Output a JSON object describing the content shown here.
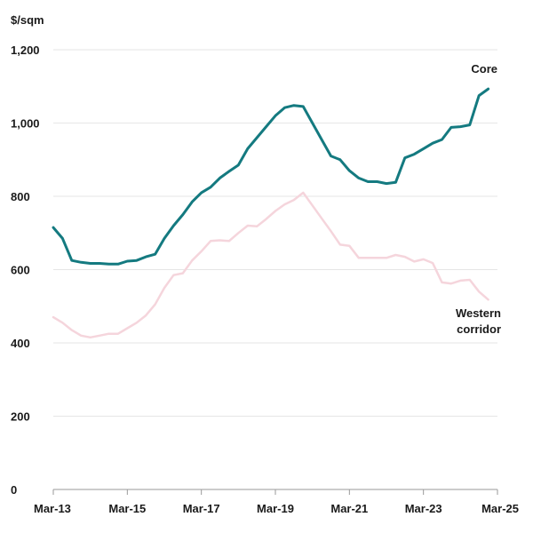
{
  "chart_data": {
    "type": "line",
    "ylabel": "$/sqm",
    "ylim": [
      0,
      1200
    ],
    "yticks": [
      0,
      200,
      400,
      600,
      800,
      1000,
      1200
    ],
    "ytick_labels": [
      "0",
      "200",
      "400",
      "600",
      "800",
      "1,000",
      "1,200"
    ],
    "xlim": [
      "2013-03",
      "2025-03"
    ],
    "xticks": [
      "2013-03",
      "2015-03",
      "2017-03",
      "2019-03",
      "2021-03",
      "2023-03",
      "2025-03"
    ],
    "xtick_labels": [
      "Mar-13",
      "Mar-15",
      "Mar-17",
      "Mar-19",
      "Mar-21",
      "Mar-23",
      "Mar-25"
    ],
    "grid": "horizontal",
    "series": [
      {
        "name": "Core",
        "label_lines": [
          "Core"
        ],
        "color": "#147a80",
        "x": [
          "2013-03",
          "2013-06",
          "2013-09",
          "2013-12",
          "2014-03",
          "2014-06",
          "2014-09",
          "2014-12",
          "2015-03",
          "2015-06",
          "2015-09",
          "2015-12",
          "2016-03",
          "2016-06",
          "2016-09",
          "2016-12",
          "2017-03",
          "2017-06",
          "2017-09",
          "2017-12",
          "2018-03",
          "2018-06",
          "2018-09",
          "2018-12",
          "2019-03",
          "2019-06",
          "2019-09",
          "2019-12",
          "2020-03",
          "2020-06",
          "2020-09",
          "2020-12",
          "2021-03",
          "2021-06",
          "2021-09",
          "2021-12",
          "2022-03",
          "2022-06",
          "2022-09",
          "2022-12",
          "2023-03",
          "2023-06",
          "2023-09",
          "2023-12",
          "2024-03",
          "2024-06",
          "2024-09",
          "2024-12"
        ],
        "values": [
          715,
          685,
          625,
          620,
          617,
          617,
          615,
          615,
          623,
          625,
          635,
          642,
          685,
          720,
          750,
          785,
          810,
          825,
          850,
          868,
          885,
          930,
          960,
          990,
          1020,
          1042,
          1048,
          1045,
          1000,
          955,
          910,
          900,
          870,
          850,
          840,
          840,
          835,
          838,
          905,
          915,
          930,
          945,
          955,
          988,
          990,
          995,
          1075,
          1093
        ]
      },
      {
        "name": "Western corridor",
        "label_lines": [
          "Western",
          "corridor"
        ],
        "color": "#f5d5dc",
        "x": [
          "2013-03",
          "2013-06",
          "2013-09",
          "2013-12",
          "2014-03",
          "2014-06",
          "2014-09",
          "2014-12",
          "2015-03",
          "2015-06",
          "2015-09",
          "2015-12",
          "2016-03",
          "2016-06",
          "2016-09",
          "2016-12",
          "2017-03",
          "2017-06",
          "2017-09",
          "2017-12",
          "2018-03",
          "2018-06",
          "2018-09",
          "2018-12",
          "2019-03",
          "2019-06",
          "2019-09",
          "2019-12",
          "2020-03",
          "2020-06",
          "2020-09",
          "2020-12",
          "2021-03",
          "2021-06",
          "2021-09",
          "2021-12",
          "2022-03",
          "2022-06",
          "2022-09",
          "2022-12",
          "2023-03",
          "2023-06",
          "2023-09",
          "2023-12",
          "2024-03",
          "2024-06",
          "2024-09",
          "2024-12"
        ],
        "values": [
          470,
          455,
          435,
          420,
          415,
          420,
          425,
          425,
          440,
          455,
          475,
          505,
          550,
          585,
          590,
          625,
          650,
          678,
          680,
          678,
          700,
          720,
          718,
          738,
          760,
          778,
          790,
          810,
          775,
          740,
          705,
          668,
          665,
          632,
          632,
          632,
          632,
          640,
          635,
          622,
          628,
          618,
          565,
          562,
          570,
          572,
          540,
          518
        ]
      }
    ]
  }
}
